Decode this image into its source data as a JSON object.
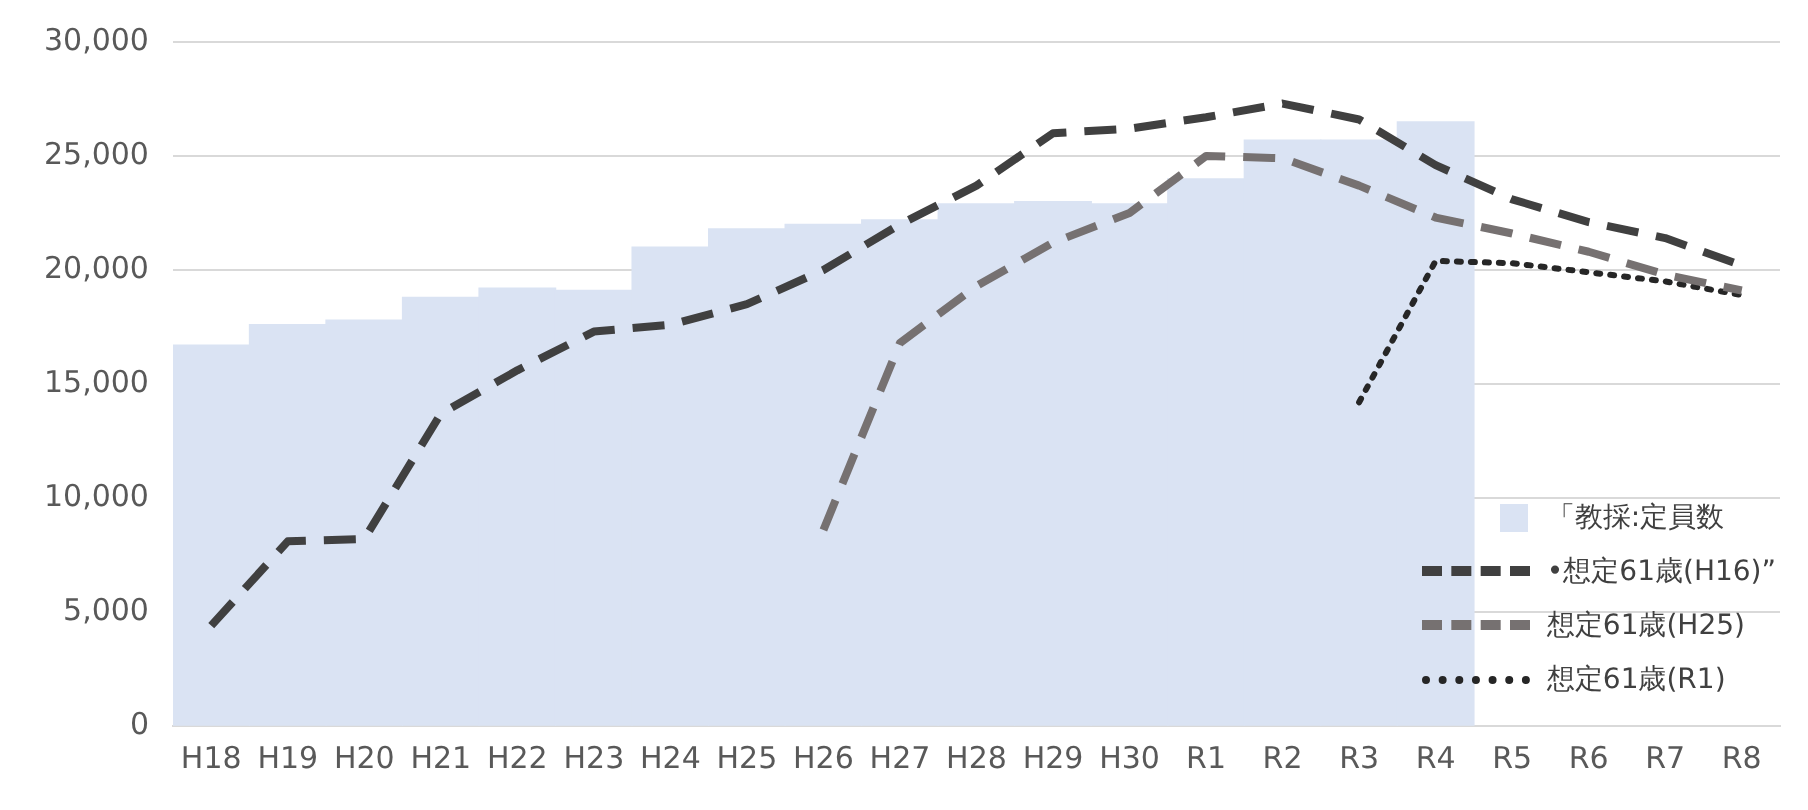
{
  "chart_data": {
    "type": "line",
    "categories": [
      "H18",
      "H19",
      "H20",
      "H21",
      "H22",
      "H23",
      "H24",
      "H25",
      "H26",
      "H27",
      "H28",
      "H29",
      "H30",
      "R1",
      "R2",
      "R3",
      "R4",
      "R5",
      "R6",
      "R7",
      "R8"
    ],
    "series": [
      {
        "name": "「教採:定員数",
        "type": "bar",
        "color": "#dae3f3",
        "values": [
          16700,
          17600,
          17800,
          18800,
          19200,
          19100,
          21000,
          21800,
          22000,
          22200,
          22900,
          23000,
          22900,
          24000,
          25700,
          25700,
          26500,
          null,
          null,
          null,
          null
        ]
      },
      {
        "name": "•想定61歳(H16)”",
        "color": "#404040",
        "line_style": "dashed",
        "values": [
          4400,
          8100,
          8200,
          13700,
          15600,
          17300,
          17600,
          18500,
          20000,
          22000,
          23700,
          26000,
          26200,
          26700,
          27300,
          26600,
          24600,
          23100,
          22100,
          21400,
          20200
        ]
      },
      {
        "name": "想定61歳(H25)",
        "color": "#767171",
        "line_style": "dashed",
        "values": [
          null,
          null,
          null,
          null,
          null,
          null,
          null,
          null,
          8600,
          16800,
          19300,
          21200,
          22500,
          25000,
          24900,
          23700,
          22300,
          21600,
          20800,
          19800,
          19100
        ]
      },
      {
        "name": "想定61歳(R1)",
        "color": "#262626",
        "line_style": "dotted",
        "values": [
          null,
          null,
          null,
          null,
          null,
          null,
          null,
          null,
          null,
          null,
          null,
          null,
          null,
          null,
          null,
          14200,
          20400,
          20300,
          19900,
          19500,
          18900
        ]
      }
    ],
    "ylim": [
      0,
      30000
    ],
    "yticks": [
      0,
      {
        "value": 5000,
        "label": "5,000"
      },
      {
        "value": 10000,
        "label": "10,000"
      },
      {
        "value": 15000,
        "label": "15,000"
      },
      {
        "value": 20000,
        "label": "20,000"
      },
      {
        "value": 25000,
        "label": "25,000"
      },
      {
        "value": 30000,
        "label": "30,000"
      }
    ],
    "grid": "y",
    "legend": "bottom right",
    "marker": "none"
  }
}
